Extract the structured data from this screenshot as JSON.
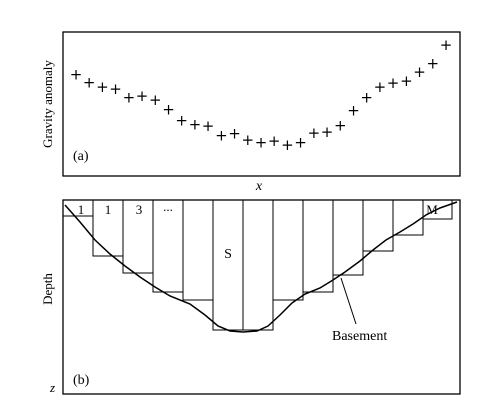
{
  "panel_a": {
    "panel_label": "(a)",
    "y_axis_label": "Gravity anomaly",
    "x_axis_label": "x",
    "marker_symbol": "+"
  },
  "panel_b": {
    "panel_label": "(b)",
    "y_axis_label": "Depth",
    "depth_symbol": "z",
    "prism_labels": [
      "1",
      "1",
      "3",
      "...",
      "M"
    ],
    "center_prism_label": "S",
    "curve_label": "Basement"
  },
  "chart_data": {
    "type": "scatter",
    "title": "",
    "xlabel": "x",
    "ylabel": "Gravity anomaly",
    "series": [
      {
        "values": [
          10,
          8.8,
          8.1,
          7.8,
          6.6,
          6.8,
          6.2,
          4.8,
          3.2,
          2.6,
          2.4,
          1.0,
          1.3,
          0.3,
          0.0,
          0.2,
          -0.4,
          0.0,
          1.4,
          1.5,
          2.5,
          4.7,
          6.6,
          8.1,
          8.7,
          9.0,
          10.3,
          11.6,
          14.3
        ]
      }
    ]
  }
}
